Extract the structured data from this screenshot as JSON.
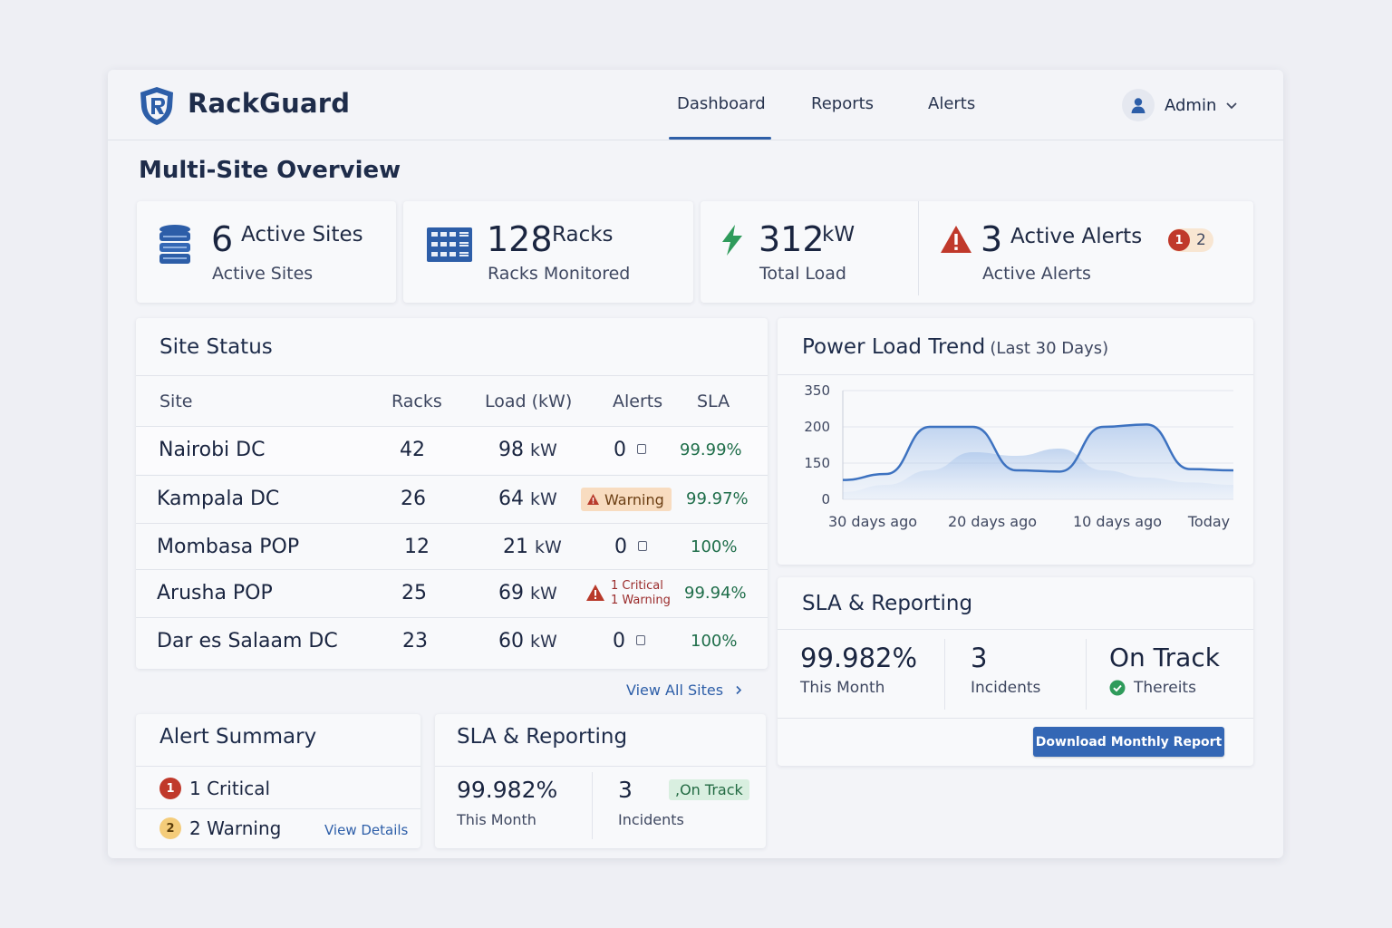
{
  "app": {
    "brand": "RackGuard"
  },
  "nav": {
    "tabs": [
      "Dashboard",
      "Reports",
      "Alerts"
    ],
    "active": "Dashboard"
  },
  "user": {
    "name": "Admin"
  },
  "page": {
    "title": "Multi-Site Overview"
  },
  "stats": {
    "sites": {
      "value": "6",
      "unit": "Active Sites",
      "label": "Active Sites",
      "icon": "database-icon"
    },
    "racks": {
      "value": "128",
      "unit": "Racks",
      "label": "Racks Monitored",
      "icon": "server-rack-icon"
    },
    "load": {
      "value": "312",
      "unit": "kW",
      "label": "Total Load",
      "icon": "lightning-icon"
    },
    "alerts": {
      "value": "3",
      "unit": "Active Alerts",
      "label": "Active Alerts",
      "critical_count": "1",
      "warning_count": "2",
      "icon": "warning-icon"
    }
  },
  "site_status": {
    "title": "Site Status",
    "columns": [
      "Site",
      "Racks",
      "Load (kW)",
      "Alerts",
      "SLA"
    ],
    "load_unit": "kW",
    "rows": [
      {
        "site": "Nairobi DC",
        "racks": "42",
        "load": "98",
        "alerts": "0",
        "sla": "99.99%"
      },
      {
        "site": "Kampala DC",
        "racks": "26",
        "load": "64",
        "alert_badge": "Warning",
        "sla": "99.97%"
      },
      {
        "site": "Mombasa POP",
        "racks": "12",
        "load": "21",
        "alerts": "0",
        "sla": "100%"
      },
      {
        "site": "Arusha POP",
        "racks": "25",
        "load": "69",
        "alert_critical": "1 Critical",
        "alert_warning": "1 Warning",
        "sla": "99.94%"
      },
      {
        "site": "Dar es Salaam DC",
        "racks": "23",
        "load": "60",
        "alerts": "0",
        "sla": "100%"
      }
    ],
    "view_all": "View All Sites"
  },
  "trend": {
    "title": "Power Load Trend",
    "subtitle": "(Last 30 Days)"
  },
  "chart_data": {
    "type": "area",
    "x_tick_labels": [
      "30 days ago",
      "20 days ago",
      "10 days ago",
      "Today"
    ],
    "y_tick_labels": [
      "350",
      "200",
      "150",
      "0"
    ],
    "y_tick_values": [
      350,
      200,
      150,
      0
    ],
    "series": [
      {
        "values": [
          80,
          105,
          200,
          200,
          120,
          115,
          200,
          210,
          125,
          120
        ]
      },
      {
        "values": [
          30,
          60,
          120,
          165,
          160,
          170,
          120,
          90,
          70,
          60
        ]
      }
    ],
    "colors": [
      "#3d72c0",
      "#a9c4ea"
    ],
    "grid": true
  },
  "sla_panel": {
    "title": "SLA & Reporting",
    "sla_value": "99.982%",
    "sla_label": "This Month",
    "incidents_value": "3",
    "incidents_label": "Incidents",
    "status_value": "On Track",
    "status_note": "Thereits",
    "download": "Download Monthly Report"
  },
  "alert_summary": {
    "title": "Alert Summary",
    "critical_badge": "1",
    "critical_label": "1 Critical",
    "warning_badge": "2",
    "warning_label": "2 Warning",
    "view_details": "View Details"
  },
  "sla_small": {
    "title": "SLA & Reporting",
    "sla_value": "99.982%",
    "sla_label": "This Month",
    "incidents_value": "3",
    "incidents_label": "Incidents",
    "status_badge": ",On Track"
  }
}
